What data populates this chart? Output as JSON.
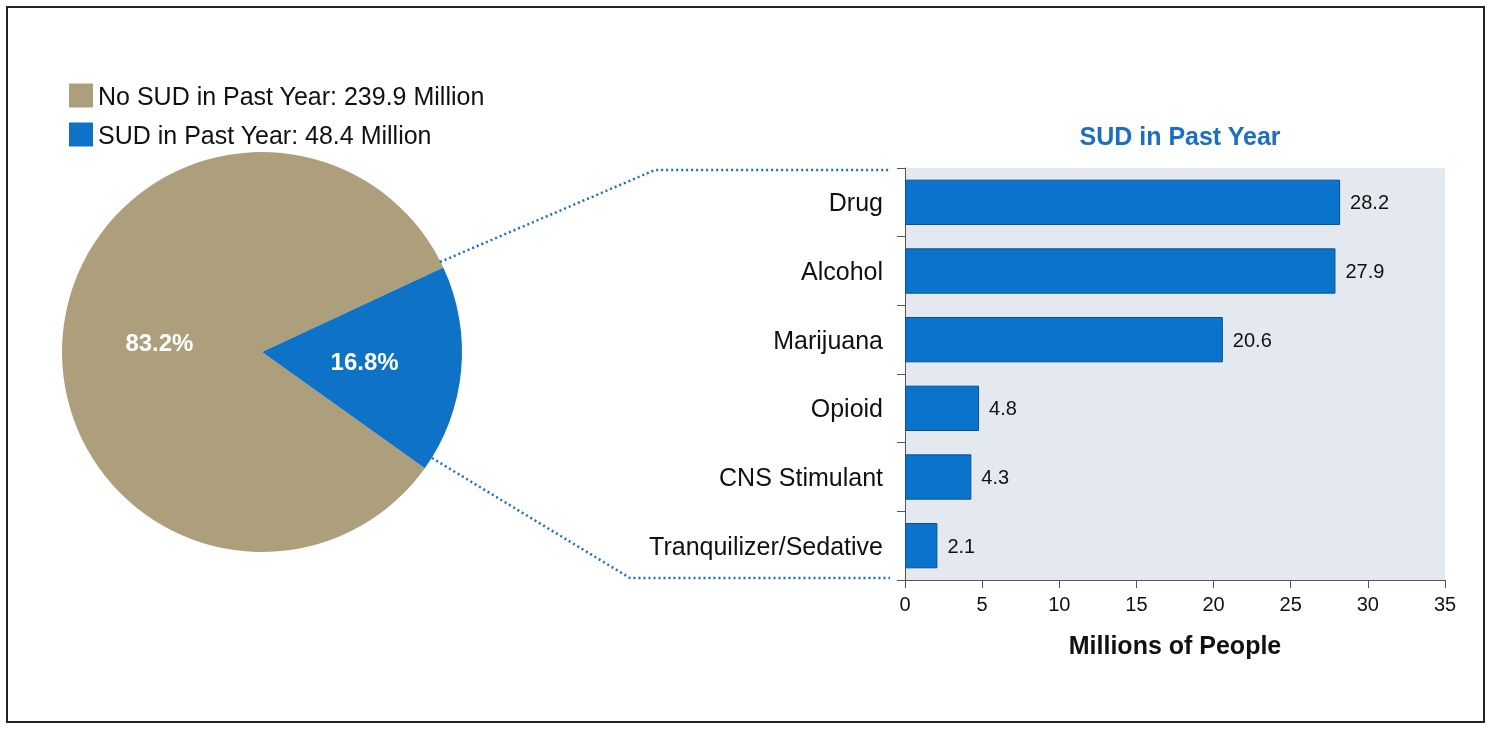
{
  "chart_data": [
    {
      "type": "pie",
      "categories": [
        "No SUD in Past Year: 239.9 Million",
        "SUD in Past Year: 48.4 Million"
      ],
      "values": [
        83.2,
        16.8
      ],
      "colors": [
        "#ad9e7c",
        "#0e72c6"
      ],
      "value_labels": [
        "83.2%",
        "16.8%"
      ],
      "legend": "top left"
    },
    {
      "type": "bar",
      "orientation": "horizontal",
      "title": "SUD in Past Year",
      "xlabel": "Millions of People",
      "categories": [
        "Drug",
        "Alcohol",
        "Marijuana",
        "Opioid",
        "CNS Stimulant",
        "Tranquilizer/Sedative"
      ],
      "values": [
        28.2,
        27.9,
        20.6,
        4.8,
        4.3,
        2.1
      ],
      "color": "#0a74cc",
      "data_labels": true,
      "xlim": [
        0,
        35
      ],
      "xticks": [
        0,
        5,
        10,
        15,
        20,
        25,
        30,
        35
      ]
    }
  ]
}
